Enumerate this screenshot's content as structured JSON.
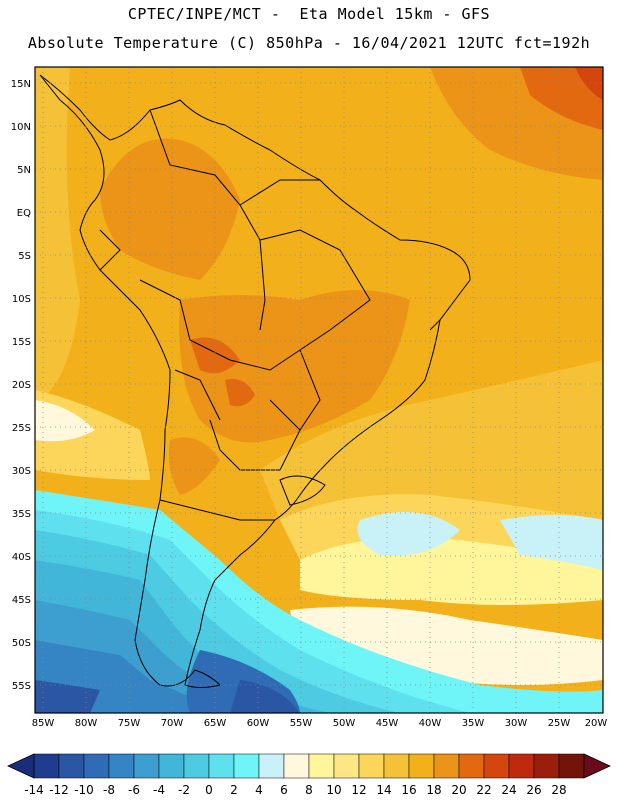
{
  "header": {
    "line1": "CPTEC/INPE/MCT -  Eta Model 15km - GFS",
    "line2": "Absolute Temperature (C) 850hPa - 16/04/2021 12UTC fct=192h"
  },
  "map": {
    "lon_labels": [
      "85W",
      "80W",
      "75W",
      "70W",
      "65W",
      "60W",
      "55W",
      "50W",
      "45W",
      "40W",
      "35W",
      "30W",
      "25W",
      "20W"
    ],
    "lat_labels": [
      "15N",
      "10N",
      "5N",
      "EQ",
      "5S",
      "10S",
      "15S",
      "20S",
      "25S",
      "30S",
      "35S",
      "40S",
      "45S",
      "50S",
      "55S"
    ],
    "grid": "dotted",
    "ocean_base_color": "#f2b11a"
  },
  "colorbar": {
    "labels": [
      "-14",
      "-12",
      "-10",
      "-8",
      "-6",
      "-4",
      "-2",
      "0",
      "2",
      "4",
      "6",
      "8",
      "10",
      "12",
      "14",
      "16",
      "18",
      "20",
      "22",
      "24",
      "26",
      "28"
    ],
    "colors": [
      "#1f3d8f",
      "#2a56a3",
      "#2f6cb5",
      "#3585c4",
      "#3d9fcf",
      "#42b6d8",
      "#4ccbe3",
      "#5fe0ee",
      "#6ff4f7",
      "#c8f2f8",
      "#fff8dc",
      "#fff59a",
      "#fde785",
      "#fbd65a",
      "#f5c237",
      "#f2b11a",
      "#ec9418",
      "#e2690f",
      "#d5450e",
      "#bf2a0e",
      "#9a1e0c",
      "#72140a"
    ],
    "left_arrow_color": "#1a2d7a",
    "right_arrow_color": "#6b0a1a"
  }
}
